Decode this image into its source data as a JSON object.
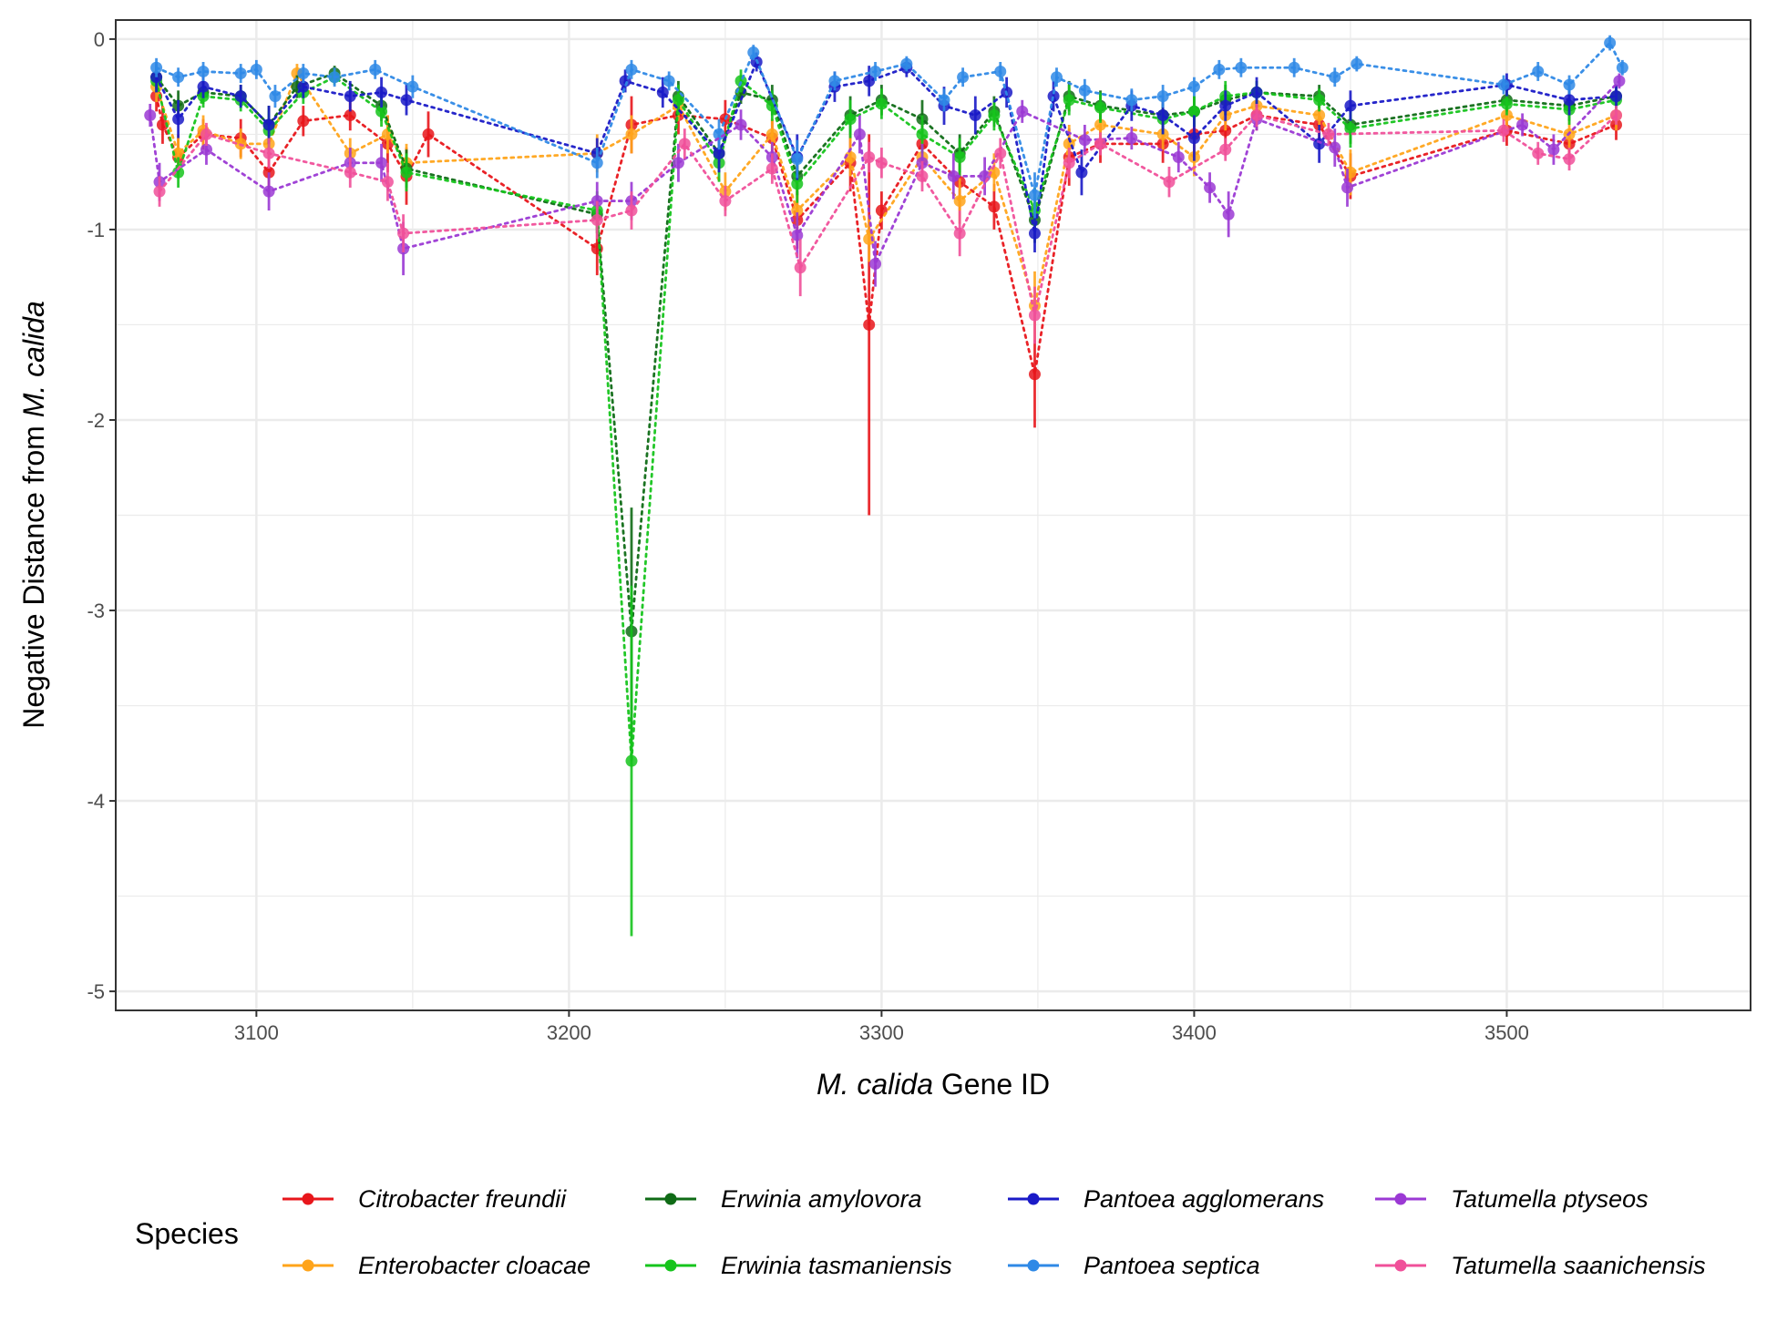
{
  "chart_data": {
    "type": "line",
    "title": "",
    "xlabel": {
      "italic": "M. calida",
      "rest": " Gene ID"
    },
    "ylabel": {
      "plain": "Negative Distance from ",
      "italic": "M. calida"
    },
    "xlim": [
      3055,
      3578
    ],
    "ylim": [
      -5.1,
      0.1
    ],
    "x_ticks": [
      3100,
      3200,
      3300,
      3400,
      3500
    ],
    "x_tick_labels": [
      "3100",
      "3200",
      "3300",
      "3400",
      "3500"
    ],
    "y_ticks": [
      0,
      -1,
      -2,
      -3,
      -4,
      -5
    ],
    "y_tick_labels": [
      "0",
      "-1",
      "-2",
      "-3",
      "-4",
      "-5"
    ],
    "grid": true,
    "legend": {
      "title": "Species",
      "position": "bottom"
    },
    "series": [
      {
        "name": "Citrobacter freundii",
        "color": "#e8161b",
        "x": [
          3068,
          3070,
          3075,
          3083,
          3095,
          3104,
          3115,
          3130,
          3142,
          3148,
          3155,
          3209,
          3220,
          3235,
          3250,
          3265,
          3273,
          3290,
          3296,
          3300,
          3313,
          3325,
          3336,
          3349,
          3360,
          3370,
          3390,
          3400,
          3410,
          3420,
          3440,
          3450,
          3500,
          3520,
          3535
        ],
        "y": [
          -0.3,
          -0.45,
          -0.62,
          -0.5,
          -0.52,
          -0.7,
          -0.43,
          -0.4,
          -0.55,
          -0.72,
          -0.5,
          -1.1,
          -0.45,
          -0.4,
          -0.42,
          -0.52,
          -0.95,
          -0.65,
          -1.5,
          -0.9,
          -0.55,
          -0.75,
          -0.88,
          -1.76,
          -0.62,
          -0.55,
          -0.55,
          -0.5,
          -0.48,
          -0.4,
          -0.45,
          -0.72,
          -0.48,
          -0.55,
          -0.45
        ],
        "err": [
          0.08,
          0.1,
          0.1,
          0.08,
          0.1,
          0.12,
          0.08,
          0.08,
          0.15,
          0.15,
          0.12,
          0.14,
          0.15,
          0.1,
          0.1,
          0.1,
          0.15,
          0.15,
          1.0,
          0.1,
          0.1,
          0.15,
          0.12,
          0.28,
          0.15,
          0.1,
          0.1,
          0.1,
          0.1,
          0.08,
          0.1,
          0.12,
          0.08,
          0.08,
          0.08
        ]
      },
      {
        "name": "Enterobacter cloacae",
        "color": "#ffa41a",
        "x": [
          3068,
          3075,
          3083,
          3095,
          3104,
          3113,
          3130,
          3142,
          3148,
          3209,
          3220,
          3235,
          3250,
          3265,
          3273,
          3290,
          3296,
          3313,
          3325,
          3336,
          3349,
          3360,
          3370,
          3390,
          3400,
          3410,
          3420,
          3440,
          3450,
          3500,
          3520,
          3535
        ],
        "y": [
          -0.25,
          -0.6,
          -0.48,
          -0.55,
          -0.55,
          -0.18,
          -0.6,
          -0.5,
          -0.65,
          -0.6,
          -0.5,
          -0.35,
          -0.8,
          -0.5,
          -0.9,
          -0.62,
          -1.05,
          -0.62,
          -0.85,
          -0.7,
          -1.4,
          -0.55,
          -0.45,
          -0.5,
          -0.62,
          -0.4,
          -0.35,
          -0.4,
          -0.7,
          -0.4,
          -0.5,
          -0.4
        ],
        "err": [
          0.08,
          0.1,
          0.08,
          0.08,
          0.08,
          0.05,
          0.08,
          0.1,
          0.1,
          0.1,
          0.1,
          0.08,
          0.1,
          0.08,
          0.12,
          0.1,
          0.12,
          0.1,
          0.12,
          0.1,
          0.18,
          0.1,
          0.08,
          0.08,
          0.1,
          0.08,
          0.08,
          0.08,
          0.12,
          0.08,
          0.08,
          0.08
        ]
      },
      {
        "name": "Erwinia amylovora",
        "color": "#0f6b16",
        "x": [
          3068,
          3075,
          3083,
          3095,
          3104,
          3113,
          3125,
          3140,
          3148,
          3209,
          3220,
          3235,
          3248,
          3255,
          3265,
          3273,
          3290,
          3300,
          3313,
          3325,
          3336,
          3349,
          3360,
          3370,
          3390,
          3400,
          3410,
          3420,
          3440,
          3450,
          3500,
          3520,
          3535
        ],
        "y": [
          -0.2,
          -0.35,
          -0.28,
          -0.3,
          -0.45,
          -0.25,
          -0.18,
          -0.35,
          -0.68,
          -0.92,
          -3.11,
          -0.3,
          -0.6,
          -0.28,
          -0.32,
          -0.72,
          -0.4,
          -0.32,
          -0.42,
          -0.6,
          -0.38,
          -0.95,
          -0.3,
          -0.35,
          -0.4,
          -0.38,
          -0.32,
          -0.28,
          -0.3,
          -0.45,
          -0.32,
          -0.35,
          -0.3
        ],
        "err": [
          0.06,
          0.08,
          0.06,
          0.06,
          0.1,
          0.06,
          0.04,
          0.08,
          0.1,
          0.1,
          0.65,
          0.08,
          0.1,
          0.06,
          0.08,
          0.1,
          0.1,
          0.08,
          0.1,
          0.1,
          0.08,
          0.12,
          0.08,
          0.08,
          0.08,
          0.08,
          0.08,
          0.06,
          0.06,
          0.1,
          0.06,
          0.08,
          0.06
        ]
      },
      {
        "name": "Erwinia tasmaniensis",
        "color": "#16c41c",
        "x": [
          3068,
          3075,
          3083,
          3095,
          3104,
          3115,
          3125,
          3140,
          3148,
          3209,
          3220,
          3235,
          3248,
          3255,
          3265,
          3273,
          3290,
          3300,
          3313,
          3325,
          3336,
          3349,
          3360,
          3370,
          3390,
          3400,
          3410,
          3420,
          3440,
          3450,
          3500,
          3520,
          3535
        ],
        "y": [
          -0.22,
          -0.7,
          -0.3,
          -0.32,
          -0.48,
          -0.28,
          -0.2,
          -0.38,
          -0.7,
          -0.9,
          -3.79,
          -0.32,
          -0.65,
          -0.22,
          -0.35,
          -0.76,
          -0.42,
          -0.34,
          -0.5,
          -0.62,
          -0.4,
          -0.9,
          -0.32,
          -0.36,
          -0.42,
          -0.38,
          -0.3,
          -0.28,
          -0.32,
          -0.47,
          -0.34,
          -0.37,
          -0.32
        ],
        "err": [
          0.06,
          0.08,
          0.06,
          0.06,
          0.1,
          0.06,
          0.04,
          0.08,
          0.1,
          0.1,
          0.92,
          0.08,
          0.1,
          0.06,
          0.08,
          0.1,
          0.1,
          0.08,
          0.1,
          0.1,
          0.08,
          0.12,
          0.08,
          0.08,
          0.08,
          0.08,
          0.08,
          0.06,
          0.06,
          0.1,
          0.06,
          0.08,
          0.06
        ]
      },
      {
        "name": "Pantoea agglomerans",
        "color": "#1a1ac7",
        "x": [
          3068,
          3075,
          3083,
          3095,
          3104,
          3115,
          3130,
          3140,
          3148,
          3209,
          3218,
          3230,
          3248,
          3260,
          3273,
          3285,
          3296,
          3308,
          3320,
          3330,
          3340,
          3349,
          3355,
          3364,
          3380,
          3390,
          3400,
          3410,
          3420,
          3440,
          3450,
          3500,
          3520,
          3535
        ],
        "y": [
          -0.2,
          -0.42,
          -0.25,
          -0.3,
          -0.45,
          -0.25,
          -0.3,
          -0.28,
          -0.32,
          -0.6,
          -0.22,
          -0.28,
          -0.6,
          -0.12,
          -0.62,
          -0.25,
          -0.22,
          -0.15,
          -0.35,
          -0.4,
          -0.28,
          -1.02,
          -0.3,
          -0.7,
          -0.35,
          -0.4,
          -0.52,
          -0.35,
          -0.28,
          -0.55,
          -0.35,
          -0.24,
          -0.32,
          -0.3
        ],
        "err": [
          0.08,
          0.1,
          0.06,
          0.06,
          0.1,
          0.06,
          0.08,
          0.08,
          0.08,
          0.08,
          0.06,
          0.08,
          0.1,
          0.05,
          0.12,
          0.08,
          0.08,
          0.05,
          0.1,
          0.1,
          0.08,
          0.1,
          0.08,
          0.12,
          0.08,
          0.1,
          0.12,
          0.08,
          0.08,
          0.1,
          0.08,
          0.06,
          0.08,
          0.06
        ]
      },
      {
        "name": "Pantoea septica",
        "color": "#2f89e6",
        "x": [
          3068,
          3075,
          3083,
          3095,
          3100,
          3106,
          3115,
          3125,
          3138,
          3150,
          3209,
          3220,
          3232,
          3248,
          3259,
          3273,
          3285,
          3298,
          3308,
          3320,
          3326,
          3338,
          3349,
          3356,
          3365,
          3380,
          3390,
          3400,
          3408,
          3415,
          3432,
          3445,
          3452,
          3499,
          3510,
          3520,
          3533,
          3537
        ],
        "y": [
          -0.15,
          -0.2,
          -0.17,
          -0.18,
          -0.16,
          -0.3,
          -0.18,
          -0.2,
          -0.16,
          -0.25,
          -0.65,
          -0.16,
          -0.22,
          -0.5,
          -0.07,
          -0.63,
          -0.22,
          -0.17,
          -0.13,
          -0.32,
          -0.2,
          -0.17,
          -0.82,
          -0.2,
          -0.27,
          -0.32,
          -0.3,
          -0.25,
          -0.16,
          -0.15,
          -0.15,
          -0.2,
          -0.13,
          -0.24,
          -0.17,
          -0.24,
          -0.02,
          -0.15
        ],
        "err": [
          0.05,
          0.05,
          0.05,
          0.05,
          0.05,
          0.06,
          0.05,
          0.05,
          0.05,
          0.06,
          0.08,
          0.05,
          0.05,
          0.08,
          0.04,
          0.1,
          0.05,
          0.05,
          0.04,
          0.06,
          0.05,
          0.05,
          0.12,
          0.05,
          0.06,
          0.06,
          0.06,
          0.05,
          0.05,
          0.05,
          0.05,
          0.05,
          0.04,
          0.05,
          0.05,
          0.05,
          0.04,
          0.04
        ]
      },
      {
        "name": "Tatumella ptyseos",
        "color": "#9b39d4",
        "x": [
          3066,
          3069,
          3084,
          3104,
          3130,
          3140,
          3147,
          3209,
          3220,
          3235,
          3255,
          3265,
          3273,
          3293,
          3298,
          3313,
          3323,
          3333,
          3345,
          3365,
          3380,
          3395,
          3405,
          3411,
          3420,
          3445,
          3449,
          3505,
          3515,
          3536
        ],
        "y": [
          -0.4,
          -0.75,
          -0.58,
          -0.8,
          -0.65,
          -0.65,
          -1.1,
          -0.85,
          -0.85,
          -0.65,
          -0.45,
          -0.62,
          -1.03,
          -0.5,
          -1.18,
          -0.65,
          -0.72,
          -0.72,
          -0.38,
          -0.53,
          -0.52,
          -0.62,
          -0.78,
          -0.92,
          -0.42,
          -0.57,
          -0.78,
          -0.45,
          -0.58,
          -0.22
        ],
        "err": [
          0.06,
          0.1,
          0.08,
          0.1,
          0.08,
          0.1,
          0.14,
          0.1,
          0.1,
          0.1,
          0.08,
          0.08,
          0.12,
          0.1,
          0.12,
          0.1,
          0.12,
          0.1,
          0.06,
          0.08,
          0.06,
          0.08,
          0.08,
          0.12,
          0.06,
          0.1,
          0.1,
          0.06,
          0.08,
          0.04
        ]
      },
      {
        "name": "Tatumella saanichensis",
        "color": "#f0509a",
        "x": [
          3069,
          3084,
          3104,
          3130,
          3142,
          3147,
          3209,
          3220,
          3237,
          3250,
          3265,
          3274,
          3296,
          3300,
          3313,
          3325,
          3338,
          3349,
          3360,
          3370,
          3392,
          3410,
          3420,
          3443,
          3499,
          3510,
          3520,
          3535
        ],
        "y": [
          -0.8,
          -0.5,
          -0.6,
          -0.7,
          -0.75,
          -1.02,
          -0.95,
          -0.9,
          -0.55,
          -0.85,
          -0.68,
          -1.2,
          -0.62,
          -0.65,
          -0.72,
          -1.02,
          -0.6,
          -1.45,
          -0.65,
          -0.55,
          -0.75,
          -0.58,
          -0.4,
          -0.5,
          -0.48,
          -0.6,
          -0.63,
          -0.4
        ],
        "err": [
          0.08,
          0.06,
          0.08,
          0.08,
          0.1,
          0.1,
          0.1,
          0.1,
          0.08,
          0.08,
          0.08,
          0.15,
          0.08,
          0.08,
          0.08,
          0.12,
          0.08,
          0.15,
          0.08,
          0.06,
          0.08,
          0.06,
          0.06,
          0.06,
          0.06,
          0.06,
          0.06,
          0.05
        ]
      }
    ]
  }
}
